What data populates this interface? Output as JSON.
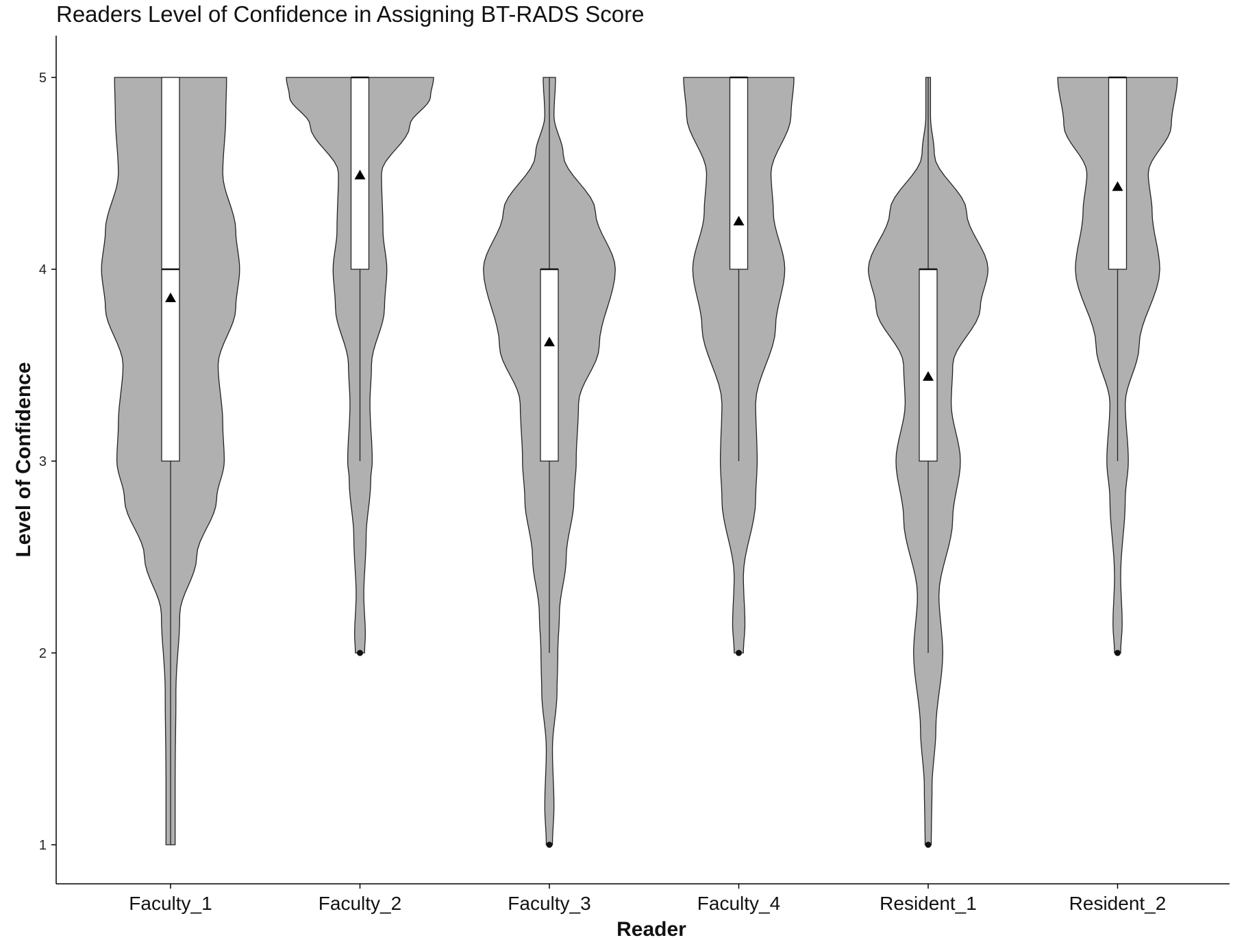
{
  "chart_data": {
    "type": "violin",
    "title": "Readers Level of Confidence in Assigning BT-RADS Score",
    "xlabel": "Reader",
    "ylabel": "Level of Confidence",
    "ylim": [
      0.8,
      5.2
    ],
    "yticks": [
      1,
      2,
      3,
      4,
      5
    ],
    "grid": false,
    "fill_color": "#b0b0b0",
    "box_color": "#ffffff",
    "categories": [
      "Faculty_1",
      "Faculty_2",
      "Faculty_3",
      "Faculty_4",
      "Resident_1",
      "Resident_2"
    ],
    "readers": [
      {
        "name": "Faculty_1",
        "box": {
          "q1": 3,
          "median": 4,
          "q3": 5,
          "whisker_low": 1,
          "whisker_high": 5
        },
        "mean": 3.85,
        "outliers": [],
        "density": [
          [
            1.0,
            0.06
          ],
          [
            1.35,
            0.06
          ],
          [
            1.8,
            0.07
          ],
          [
            2.2,
            0.12
          ],
          [
            2.5,
            0.34
          ],
          [
            2.8,
            0.6
          ],
          [
            3.0,
            0.7
          ],
          [
            3.2,
            0.68
          ],
          [
            3.5,
            0.62
          ],
          [
            3.8,
            0.85
          ],
          [
            4.0,
            0.9
          ],
          [
            4.2,
            0.85
          ],
          [
            4.5,
            0.68
          ],
          [
            4.8,
            0.72
          ],
          [
            5.0,
            0.73
          ]
        ]
      },
      {
        "name": "Faculty_2",
        "box": {
          "q1": 4,
          "median": 5,
          "q3": 5,
          "whisker_low": 3,
          "whisker_high": 5
        },
        "mean": 4.49,
        "outliers": [
          2
        ],
        "density": [
          [
            2.0,
            0.06
          ],
          [
            2.1,
            0.07
          ],
          [
            2.3,
            0.05
          ],
          [
            2.6,
            0.08
          ],
          [
            2.9,
            0.14
          ],
          [
            3.0,
            0.16
          ],
          [
            3.3,
            0.13
          ],
          [
            3.5,
            0.15
          ],
          [
            3.8,
            0.32
          ],
          [
            4.0,
            0.35
          ],
          [
            4.2,
            0.3
          ],
          [
            4.5,
            0.28
          ],
          [
            4.75,
            0.65
          ],
          [
            4.9,
            0.92
          ],
          [
            5.0,
            0.96
          ]
        ]
      },
      {
        "name": "Faculty_3",
        "box": {
          "q1": 3,
          "median": 4,
          "q3": 4,
          "whisker_low": 2,
          "whisker_high": 5
        },
        "mean": 3.62,
        "outliers": [
          1
        ],
        "density": [
          [
            1.0,
            0.04
          ],
          [
            1.2,
            0.06
          ],
          [
            1.5,
            0.04
          ],
          [
            1.8,
            0.1
          ],
          [
            2.0,
            0.11
          ],
          [
            2.2,
            0.13
          ],
          [
            2.5,
            0.22
          ],
          [
            2.8,
            0.32
          ],
          [
            3.0,
            0.35
          ],
          [
            3.3,
            0.38
          ],
          [
            3.6,
            0.65
          ],
          [
            4.0,
            0.86
          ],
          [
            4.3,
            0.6
          ],
          [
            4.6,
            0.18
          ],
          [
            4.8,
            0.06
          ],
          [
            5.0,
            0.08
          ]
        ]
      },
      {
        "name": "Faculty_4",
        "box": {
          "q1": 4,
          "median": 5,
          "q3": 5,
          "whisker_low": 3,
          "whisker_high": 5
        },
        "mean": 4.25,
        "outliers": [
          2
        ],
        "density": [
          [
            2.0,
            0.06
          ],
          [
            2.15,
            0.08
          ],
          [
            2.4,
            0.06
          ],
          [
            2.8,
            0.22
          ],
          [
            3.0,
            0.24
          ],
          [
            3.3,
            0.22
          ],
          [
            3.7,
            0.48
          ],
          [
            4.0,
            0.6
          ],
          [
            4.3,
            0.45
          ],
          [
            4.5,
            0.42
          ],
          [
            4.8,
            0.68
          ],
          [
            5.0,
            0.72
          ]
        ]
      },
      {
        "name": "Resident_1",
        "box": {
          "q1": 3,
          "median": 4,
          "q3": 4,
          "whisker_low": 2,
          "whisker_high": 5
        },
        "mean": 3.44,
        "outliers": [
          1
        ],
        "density": [
          [
            1.0,
            0.04
          ],
          [
            1.3,
            0.05
          ],
          [
            1.6,
            0.1
          ],
          [
            2.0,
            0.19
          ],
          [
            2.3,
            0.14
          ],
          [
            2.7,
            0.32
          ],
          [
            3.0,
            0.42
          ],
          [
            3.3,
            0.3
          ],
          [
            3.5,
            0.32
          ],
          [
            3.8,
            0.68
          ],
          [
            4.0,
            0.78
          ],
          [
            4.3,
            0.5
          ],
          [
            4.6,
            0.08
          ],
          [
            4.8,
            0.03
          ],
          [
            5.0,
            0.03
          ]
        ]
      },
      {
        "name": "Resident_2",
        "box": {
          "q1": 4,
          "median": 5,
          "q3": 5,
          "whisker_low": 3,
          "whisker_high": 5
        },
        "mean": 4.43,
        "outliers": [
          2
        ],
        "density": [
          [
            2.0,
            0.04
          ],
          [
            2.15,
            0.06
          ],
          [
            2.4,
            0.04
          ],
          [
            2.8,
            0.1
          ],
          [
            3.0,
            0.14
          ],
          [
            3.3,
            0.1
          ],
          [
            3.6,
            0.28
          ],
          [
            4.0,
            0.55
          ],
          [
            4.3,
            0.45
          ],
          [
            4.5,
            0.4
          ],
          [
            4.75,
            0.7
          ],
          [
            5.0,
            0.78
          ]
        ]
      }
    ]
  }
}
